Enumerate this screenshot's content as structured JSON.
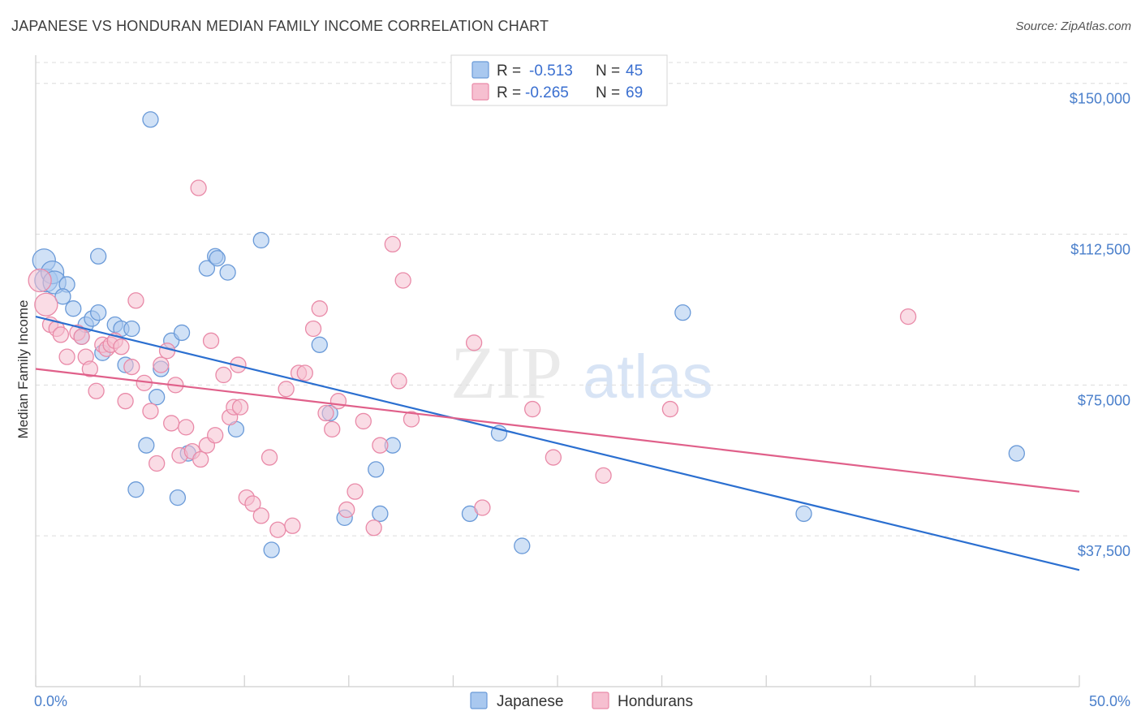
{
  "title": "JAPANESE VS HONDURAN MEDIAN FAMILY INCOME CORRELATION CHART",
  "source": "Source: ZipAtlas.com",
  "watermark": {
    "zip": "ZIP",
    "atlas": "atlas"
  },
  "colors": {
    "japanese_fill": "#a9c8ef",
    "japanese_stroke": "#6a9ad8",
    "japanese_line": "#2b6fd0",
    "hondurans_fill": "#f6bfd0",
    "hondurans_stroke": "#e98aa8",
    "hondurans_line": "#e0608a",
    "tick_text": "#4a7fcb"
  },
  "legend": {
    "r_label": "R =",
    "n_label": "N =",
    "rows": [
      {
        "series": "Japanese",
        "r": "-0.513",
        "n": "45"
      },
      {
        "series": "Hondurans",
        "r": "-0.265",
        "n": "69"
      }
    ]
  },
  "chart_data": {
    "type": "scatter",
    "title": "JAPANESE VS HONDURAN MEDIAN FAMILY INCOME CORRELATION CHART",
    "xlabel": "",
    "ylabel": "Median Family Income",
    "xlim": [
      0,
      50
    ],
    "ylim": [
      0,
      157000
    ],
    "x_tick_labels": [
      "0.0%",
      "50.0%"
    ],
    "y_ticks": [
      37500,
      75000,
      112500,
      150000
    ],
    "y_tick_labels": [
      "$37,500",
      "$75,000",
      "$112,500",
      "$150,000"
    ],
    "grid": "horizontal dashed",
    "legend_position": "top-center",
    "series": [
      {
        "name": "Japanese",
        "trend": {
          "x": [
            0,
            50
          ],
          "y": [
            92000,
            29000
          ]
        },
        "points": [
          [
            0.4,
            106000
          ],
          [
            0.5,
            101000
          ],
          [
            0.8,
            103000
          ],
          [
            0.9,
            100500
          ],
          [
            1.5,
            100000
          ],
          [
            1.3,
            97000
          ],
          [
            1.8,
            94000
          ],
          [
            2.2,
            87000
          ],
          [
            2.4,
            90000
          ],
          [
            2.7,
            91500
          ],
          [
            3.0,
            93000
          ],
          [
            3.2,
            83000
          ],
          [
            3.0,
            107000
          ],
          [
            3.8,
            90000
          ],
          [
            4.1,
            89000
          ],
          [
            4.3,
            80000
          ],
          [
            4.6,
            89000
          ],
          [
            5.3,
            60000
          ],
          [
            5.5,
            141000
          ],
          [
            5.8,
            72000
          ],
          [
            6.0,
            79000
          ],
          [
            6.5,
            86000
          ],
          [
            7.0,
            88000
          ],
          [
            6.8,
            47000
          ],
          [
            7.3,
            58000
          ],
          [
            8.2,
            104000
          ],
          [
            8.6,
            107000
          ],
          [
            8.7,
            106500
          ],
          [
            9.2,
            103000
          ],
          [
            9.6,
            64000
          ],
          [
            10.8,
            111000
          ],
          [
            11.3,
            34000
          ],
          [
            13.6,
            85000
          ],
          [
            14.1,
            68000
          ],
          [
            14.8,
            42000
          ],
          [
            16.3,
            54000
          ],
          [
            16.5,
            43000
          ],
          [
            17.1,
            60000
          ],
          [
            20.8,
            43000
          ],
          [
            22.2,
            63000
          ],
          [
            23.3,
            35000
          ],
          [
            31.0,
            93000
          ],
          [
            36.8,
            43000
          ],
          [
            47.0,
            58000
          ],
          [
            4.8,
            49000
          ]
        ]
      },
      {
        "name": "Hondurans",
        "trend": {
          "x": [
            0,
            50
          ],
          "y": [
            79000,
            48500
          ]
        },
        "points": [
          [
            0.2,
            101000
          ],
          [
            0.5,
            95000
          ],
          [
            0.7,
            90000
          ],
          [
            1.0,
            89000
          ],
          [
            1.2,
            87500
          ],
          [
            1.5,
            82000
          ],
          [
            2.0,
            88000
          ],
          [
            2.2,
            87000
          ],
          [
            2.4,
            82000
          ],
          [
            2.6,
            79000
          ],
          [
            2.9,
            73500
          ],
          [
            3.2,
            85000
          ],
          [
            3.4,
            84000
          ],
          [
            3.6,
            85000
          ],
          [
            3.8,
            86000
          ],
          [
            4.1,
            84500
          ],
          [
            4.3,
            71000
          ],
          [
            4.6,
            79500
          ],
          [
            4.8,
            96000
          ],
          [
            5.2,
            75500
          ],
          [
            5.5,
            68500
          ],
          [
            5.8,
            55500
          ],
          [
            6.0,
            80000
          ],
          [
            6.3,
            83500
          ],
          [
            6.5,
            65500
          ],
          [
            6.7,
            75000
          ],
          [
            6.9,
            57500
          ],
          [
            7.2,
            64500
          ],
          [
            7.5,
            58500
          ],
          [
            7.8,
            124000
          ],
          [
            7.9,
            56500
          ],
          [
            8.2,
            60000
          ],
          [
            8.4,
            86000
          ],
          [
            8.6,
            62500
          ],
          [
            9.0,
            77500
          ],
          [
            9.3,
            67000
          ],
          [
            9.5,
            69500
          ],
          [
            9.8,
            69500
          ],
          [
            10.1,
            47000
          ],
          [
            10.4,
            45500
          ],
          [
            10.8,
            42500
          ],
          [
            11.2,
            57000
          ],
          [
            11.6,
            39000
          ],
          [
            12.0,
            74000
          ],
          [
            12.3,
            40000
          ],
          [
            12.6,
            78000
          ],
          [
            12.9,
            78000
          ],
          [
            13.3,
            89000
          ],
          [
            13.6,
            94000
          ],
          [
            13.9,
            68000
          ],
          [
            14.2,
            64000
          ],
          [
            14.5,
            71000
          ],
          [
            14.9,
            44000
          ],
          [
            15.3,
            48500
          ],
          [
            15.7,
            66000
          ],
          [
            16.2,
            39500
          ],
          [
            16.5,
            60000
          ],
          [
            17.1,
            110000
          ],
          [
            17.4,
            76000
          ],
          [
            17.6,
            101000
          ],
          [
            18.0,
            66500
          ],
          [
            21.0,
            85500
          ],
          [
            21.4,
            44500
          ],
          [
            23.8,
            69000
          ],
          [
            24.8,
            57000
          ],
          [
            27.2,
            52500
          ],
          [
            30.4,
            69000
          ],
          [
            41.8,
            92000
          ],
          [
            9.7,
            80000
          ]
        ]
      }
    ]
  }
}
